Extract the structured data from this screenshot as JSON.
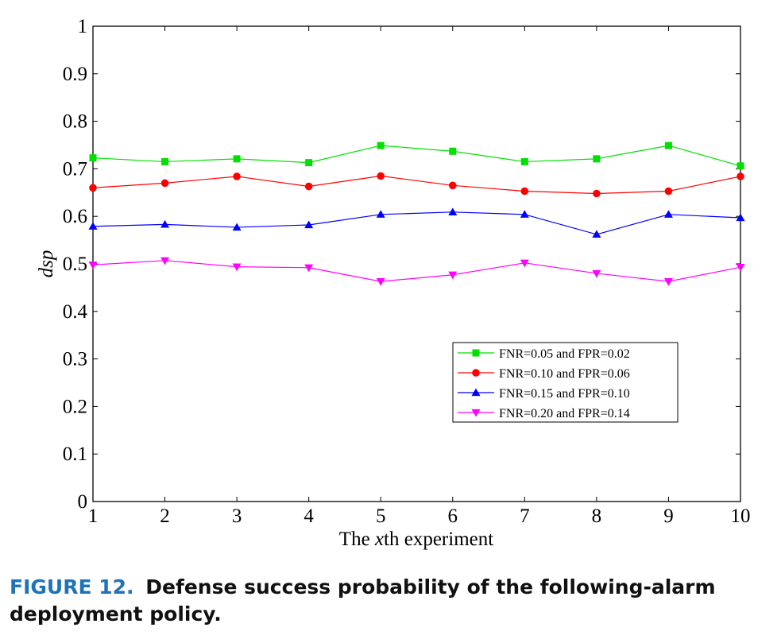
{
  "chart_data": {
    "type": "line",
    "x": [
      1,
      2,
      3,
      4,
      5,
      6,
      7,
      8,
      9,
      10
    ],
    "xlim": [
      1,
      10
    ],
    "ylim": [
      0,
      1
    ],
    "xticks": [
      "1",
      "2",
      "3",
      "4",
      "5",
      "6",
      "7",
      "8",
      "9",
      "10"
    ],
    "yticks": [
      "0",
      "0.1",
      "0.2",
      "0.3",
      "0.4",
      "0.5",
      "0.6",
      "0.7",
      "0.8",
      "0.9",
      "1"
    ],
    "xlabel": {
      "pre": "The ",
      "italic": "x",
      "post": "th experiment"
    },
    "ylabel": "dsp",
    "grid": false,
    "legend_position": "lower-right",
    "series": [
      {
        "name": "FNR=0.05 and FPR=0.02",
        "color": "#00e000",
        "marker": "square",
        "values": [
          0.723,
          0.715,
          0.721,
          0.713,
          0.749,
          0.737,
          0.715,
          0.721,
          0.749,
          0.706
        ]
      },
      {
        "name": "FNR=0.10 and FPR=0.06",
        "color": "#ff0000",
        "marker": "circle",
        "values": [
          0.66,
          0.67,
          0.684,
          0.663,
          0.685,
          0.665,
          0.653,
          0.648,
          0.653,
          0.684
        ]
      },
      {
        "name": "FNR=0.15 and FPR=0.10",
        "color": "#0000ff",
        "marker": "triangle-up",
        "values": [
          0.579,
          0.583,
          0.577,
          0.582,
          0.604,
          0.609,
          0.604,
          0.562,
          0.604,
          0.597
        ]
      },
      {
        "name": "FNR=0.20 and FPR=0.14",
        "color": "#ff00ff",
        "marker": "triangle-down",
        "values": [
          0.498,
          0.507,
          0.494,
          0.492,
          0.463,
          0.477,
          0.502,
          0.48,
          0.463,
          0.493
        ]
      }
    ]
  },
  "caption": {
    "figure_number": "FIGURE 12.",
    "text": "Defense success probability of the following-alarm deployment policy."
  }
}
